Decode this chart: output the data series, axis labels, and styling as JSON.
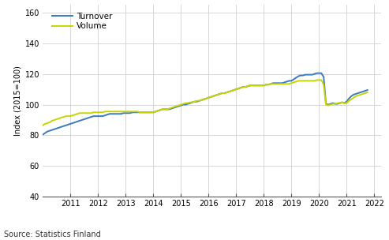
{
  "title": "",
  "ylabel": "Index (2015=100)",
  "source_text": "Source: Statistics Finland",
  "xlim": [
    2010.0,
    2022.25
  ],
  "ylim": [
    40,
    165
  ],
  "yticks": [
    40,
    60,
    80,
    100,
    120,
    140,
    160
  ],
  "xticks": [
    2011,
    2012,
    2013,
    2014,
    2015,
    2016,
    2017,
    2018,
    2019,
    2020,
    2021,
    2022
  ],
  "background_color": "#ffffff",
  "grid_color": "#d0d0d0",
  "turnover_color": "#3a7abf",
  "volume_color": "#c8d400",
  "legend_labels": [
    "Turnover",
    "Volume"
  ],
  "turnover_x": [
    2010.0,
    2010.083,
    2010.167,
    2010.25,
    2010.333,
    2010.417,
    2010.5,
    2010.583,
    2010.667,
    2010.75,
    2010.833,
    2010.917,
    2011.0,
    2011.083,
    2011.167,
    2011.25,
    2011.333,
    2011.417,
    2011.5,
    2011.583,
    2011.667,
    2011.75,
    2011.833,
    2011.917,
    2012.0,
    2012.083,
    2012.167,
    2012.25,
    2012.333,
    2012.417,
    2012.5,
    2012.583,
    2012.667,
    2012.75,
    2012.833,
    2012.917,
    2013.0,
    2013.083,
    2013.167,
    2013.25,
    2013.333,
    2013.417,
    2013.5,
    2013.583,
    2013.667,
    2013.75,
    2013.833,
    2013.917,
    2014.0,
    2014.083,
    2014.167,
    2014.25,
    2014.333,
    2014.417,
    2014.5,
    2014.583,
    2014.667,
    2014.75,
    2014.833,
    2014.917,
    2015.0,
    2015.083,
    2015.167,
    2015.25,
    2015.333,
    2015.417,
    2015.5,
    2015.583,
    2015.667,
    2015.75,
    2015.833,
    2015.917,
    2016.0,
    2016.083,
    2016.167,
    2016.25,
    2016.333,
    2016.417,
    2016.5,
    2016.583,
    2016.667,
    2016.75,
    2016.833,
    2016.917,
    2017.0,
    2017.083,
    2017.167,
    2017.25,
    2017.333,
    2017.417,
    2017.5,
    2017.583,
    2017.667,
    2017.75,
    2017.833,
    2017.917,
    2018.0,
    2018.083,
    2018.167,
    2018.25,
    2018.333,
    2018.417,
    2018.5,
    2018.583,
    2018.667,
    2018.75,
    2018.833,
    2018.917,
    2019.0,
    2019.083,
    2019.167,
    2019.25,
    2019.333,
    2019.417,
    2019.5,
    2019.583,
    2019.667,
    2019.75,
    2019.833,
    2019.917,
    2020.0,
    2020.083,
    2020.167,
    2020.25,
    2020.333,
    2020.417,
    2020.5,
    2020.583,
    2020.667,
    2020.75,
    2020.833,
    2020.917,
    2021.0,
    2021.083,
    2021.167,
    2021.25,
    2021.333,
    2021.417,
    2021.5,
    2021.583,
    2021.667,
    2021.75
  ],
  "turnover_y": [
    80.5,
    81.5,
    82.5,
    83.0,
    83.5,
    84.0,
    84.5,
    85.0,
    85.5,
    86.0,
    86.5,
    87.0,
    87.5,
    88.0,
    88.5,
    89.0,
    89.5,
    90.0,
    90.5,
    91.0,
    91.5,
    92.0,
    92.5,
    92.5,
    92.5,
    92.5,
    92.5,
    93.0,
    93.5,
    94.0,
    94.0,
    94.0,
    94.0,
    94.0,
    94.0,
    94.5,
    94.5,
    94.5,
    94.5,
    95.0,
    95.0,
    95.0,
    95.0,
    95.0,
    95.0,
    95.0,
    95.0,
    95.0,
    95.0,
    95.5,
    96.0,
    96.5,
    97.0,
    97.0,
    97.0,
    97.0,
    97.5,
    98.0,
    98.5,
    99.0,
    99.5,
    100.0,
    100.0,
    100.5,
    101.0,
    101.5,
    102.0,
    102.0,
    102.5,
    103.0,
    103.5,
    104.0,
    104.5,
    105.0,
    105.5,
    106.0,
    106.5,
    107.0,
    107.5,
    107.5,
    108.0,
    108.5,
    109.0,
    109.5,
    110.0,
    110.5,
    111.0,
    111.5,
    111.5,
    112.0,
    112.5,
    112.5,
    112.5,
    112.5,
    112.5,
    112.5,
    112.5,
    113.0,
    113.0,
    113.5,
    114.0,
    114.0,
    114.0,
    114.0,
    114.0,
    114.5,
    115.0,
    115.5,
    115.5,
    116.5,
    117.5,
    118.5,
    119.0,
    119.0,
    119.5,
    119.5,
    119.5,
    119.5,
    120.0,
    120.5,
    120.5,
    120.5,
    118.0,
    100.5,
    100.0,
    100.5,
    101.0,
    100.5,
    100.5,
    101.0,
    101.5,
    101.0,
    102.0,
    104.0,
    105.5,
    106.5,
    107.0,
    107.5,
    108.0,
    108.5,
    109.0,
    109.5
  ],
  "volume_x": [
    2010.0,
    2010.083,
    2010.167,
    2010.25,
    2010.333,
    2010.417,
    2010.5,
    2010.583,
    2010.667,
    2010.75,
    2010.833,
    2010.917,
    2011.0,
    2011.083,
    2011.167,
    2011.25,
    2011.333,
    2011.417,
    2011.5,
    2011.583,
    2011.667,
    2011.75,
    2011.833,
    2011.917,
    2012.0,
    2012.083,
    2012.167,
    2012.25,
    2012.333,
    2012.417,
    2012.5,
    2012.583,
    2012.667,
    2012.75,
    2012.833,
    2012.917,
    2013.0,
    2013.083,
    2013.167,
    2013.25,
    2013.333,
    2013.417,
    2013.5,
    2013.583,
    2013.667,
    2013.75,
    2013.833,
    2013.917,
    2014.0,
    2014.083,
    2014.167,
    2014.25,
    2014.333,
    2014.417,
    2014.5,
    2014.583,
    2014.667,
    2014.75,
    2014.833,
    2014.917,
    2015.0,
    2015.083,
    2015.167,
    2015.25,
    2015.333,
    2015.417,
    2015.5,
    2015.583,
    2015.667,
    2015.75,
    2015.833,
    2015.917,
    2016.0,
    2016.083,
    2016.167,
    2016.25,
    2016.333,
    2016.417,
    2016.5,
    2016.583,
    2016.667,
    2016.75,
    2016.833,
    2016.917,
    2017.0,
    2017.083,
    2017.167,
    2017.25,
    2017.333,
    2017.417,
    2017.5,
    2017.583,
    2017.667,
    2017.75,
    2017.833,
    2017.917,
    2018.0,
    2018.083,
    2018.167,
    2018.25,
    2018.333,
    2018.417,
    2018.5,
    2018.583,
    2018.667,
    2018.75,
    2018.833,
    2018.917,
    2019.0,
    2019.083,
    2019.167,
    2019.25,
    2019.333,
    2019.417,
    2019.5,
    2019.583,
    2019.667,
    2019.75,
    2019.833,
    2019.917,
    2020.0,
    2020.083,
    2020.167,
    2020.25,
    2020.333,
    2020.417,
    2020.5,
    2020.583,
    2020.667,
    2020.75,
    2020.833,
    2020.917,
    2021.0,
    2021.083,
    2021.167,
    2021.25,
    2021.333,
    2021.417,
    2021.5,
    2021.583,
    2021.667,
    2021.75
  ],
  "volume_y": [
    86.5,
    87.5,
    88.0,
    88.5,
    89.5,
    90.0,
    90.5,
    91.0,
    91.5,
    92.0,
    92.5,
    92.5,
    92.5,
    93.0,
    93.5,
    94.0,
    94.5,
    94.5,
    94.5,
    94.5,
    94.5,
    94.5,
    95.0,
    95.0,
    95.0,
    95.0,
    95.0,
    95.5,
    95.5,
    95.5,
    95.5,
    95.5,
    95.5,
    95.5,
    95.5,
    95.5,
    95.5,
    95.5,
    95.5,
    95.5,
    95.5,
    95.5,
    95.0,
    95.0,
    95.0,
    95.0,
    95.0,
    95.0,
    95.0,
    95.5,
    96.0,
    96.5,
    97.0,
    97.0,
    97.0,
    97.5,
    98.0,
    98.5,
    99.0,
    99.5,
    100.0,
    100.5,
    101.0,
    101.0,
    101.5,
    101.5,
    102.0,
    102.5,
    102.5,
    103.0,
    103.5,
    104.0,
    104.5,
    105.0,
    105.5,
    106.0,
    106.5,
    107.0,
    107.5,
    107.5,
    108.0,
    108.5,
    109.0,
    109.5,
    110.0,
    110.5,
    111.0,
    111.5,
    111.5,
    112.0,
    112.5,
    112.5,
    112.5,
    112.5,
    112.5,
    112.5,
    112.5,
    113.0,
    113.0,
    113.5,
    113.5,
    113.5,
    113.5,
    113.5,
    113.5,
    113.5,
    113.5,
    113.5,
    114.0,
    114.5,
    115.0,
    115.5,
    115.5,
    115.5,
    115.5,
    115.5,
    115.5,
    115.5,
    115.5,
    116.0,
    116.0,
    116.0,
    113.0,
    100.0,
    99.5,
    100.0,
    100.5,
    100.5,
    101.0,
    101.0,
    101.5,
    101.0,
    101.0,
    102.5,
    103.5,
    104.5,
    105.5,
    106.0,
    106.5,
    107.0,
    107.5,
    108.0
  ]
}
